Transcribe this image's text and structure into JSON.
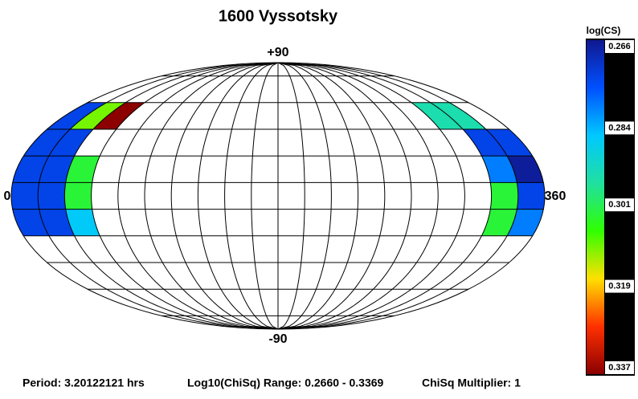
{
  "chart_data": {
    "type": "pole-map",
    "title": "1600 Vyssotsky",
    "labels": {
      "top": "+90",
      "bottom": "-90",
      "left": "0",
      "right": "360"
    },
    "grid": {
      "lon_step": 18,
      "parallels": [
        -81,
        -63,
        -45,
        -27,
        -9,
        9,
        27,
        45,
        63,
        81
      ]
    },
    "cells": [
      {
        "lon": [
          0,
          18
        ],
        "lat": [
          45,
          63
        ],
        "value": 0.274
      },
      {
        "lon": [
          18,
          36
        ],
        "lat": [
          45,
          63
        ],
        "value": 0.31
      },
      {
        "lon": [
          36,
          54
        ],
        "lat": [
          45,
          63
        ],
        "value": 0.3369
      },
      {
        "lon": [
          306,
          324
        ],
        "lat": [
          45,
          63
        ],
        "value": 0.295
      },
      {
        "lon": [
          324,
          342
        ],
        "lat": [
          45,
          63
        ],
        "value": 0.295
      },
      {
        "lon": [
          0,
          18
        ],
        "lat": [
          27,
          45
        ],
        "value": 0.274
      },
      {
        "lon": [
          18,
          36
        ],
        "lat": [
          27,
          45
        ],
        "value": 0.274
      },
      {
        "lon": [
          324,
          342
        ],
        "lat": [
          27,
          45
        ],
        "value": 0.274
      },
      {
        "lon": [
          342,
          360
        ],
        "lat": [
          27,
          45
        ],
        "value": 0.274
      },
      {
        "lon": [
          0,
          18
        ],
        "lat": [
          9,
          27
        ],
        "value": 0.274
      },
      {
        "lon": [
          18,
          36
        ],
        "lat": [
          9,
          27
        ],
        "value": 0.274
      },
      {
        "lon": [
          36,
          54
        ],
        "lat": [
          9,
          27
        ],
        "value": 0.303
      },
      {
        "lon": [
          324,
          342
        ],
        "lat": [
          9,
          27
        ],
        "value": 0.28
      },
      {
        "lon": [
          342,
          360
        ],
        "lat": [
          9,
          27
        ],
        "value": 0.267
      },
      {
        "lon": [
          0,
          18
        ],
        "lat": [
          -9,
          9
        ],
        "value": 0.274
      },
      {
        "lon": [
          18,
          36
        ],
        "lat": [
          -9,
          9
        ],
        "value": 0.274
      },
      {
        "lon": [
          36,
          54
        ],
        "lat": [
          -9,
          9
        ],
        "value": 0.303
      },
      {
        "lon": [
          324,
          342
        ],
        "lat": [
          -9,
          9
        ],
        "value": 0.303
      },
      {
        "lon": [
          342,
          360
        ],
        "lat": [
          -9,
          9
        ],
        "value": 0.274
      },
      {
        "lon": [
          0,
          18
        ],
        "lat": [
          -27,
          -9
        ],
        "value": 0.274
      },
      {
        "lon": [
          18,
          36
        ],
        "lat": [
          -27,
          -9
        ],
        "value": 0.274
      },
      {
        "lon": [
          36,
          54
        ],
        "lat": [
          -27,
          -9
        ],
        "value": 0.287
      },
      {
        "lon": [
          324,
          342
        ],
        "lat": [
          -27,
          -9
        ],
        "value": 0.303
      },
      {
        "lon": [
          342,
          360
        ],
        "lat": [
          -27,
          -9
        ],
        "value": 0.28
      }
    ],
    "colorbar": {
      "title": "log(CS)",
      "lim": [
        0.266,
        0.337
      ],
      "ticks": [
        0.266,
        0.284,
        0.301,
        0.319,
        0.337
      ],
      "colormap": [
        "#101890",
        "#0050ff",
        "#00c8ff",
        "#20e0a0",
        "#30ff00",
        "#ffe000",
        "#ff3000",
        "#8b0000"
      ]
    },
    "footer": [
      "Period: 3.20122121 hrs",
      "Log10(ChiSq) Range: 0.2660 - 0.3369",
      "ChiSq Multiplier: 1"
    ]
  }
}
